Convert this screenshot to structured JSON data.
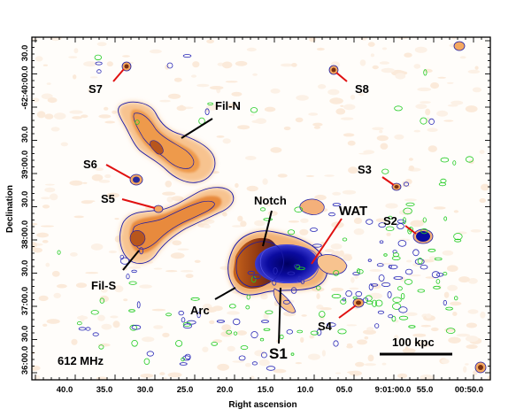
{
  "axes": {
    "x_title": "Right ascension",
    "y_title": "Declination",
    "x_ticks": [
      "40.0",
      "35.0",
      "30.0",
      "25.0",
      "20.0",
      "15.0",
      "10.0",
      "05.0",
      "9:01:00.0",
      "55.0",
      "00:50.0"
    ],
    "y_ticks": [
      "36:00.0",
      "30.0",
      "37:00.0",
      "30.0",
      "38:00.0",
      "30.0",
      "39:00.0",
      "30.0",
      "-62:40:00.0",
      "30.0"
    ]
  },
  "frequency_label": "612 MHz",
  "scale_bar_label": "100 kpc",
  "annotations": {
    "fil_n": "Fil-N",
    "fil_s": "Fil-S",
    "notch": "Notch",
    "wat": "WAT",
    "arc": "Arc",
    "s1": "S1",
    "s2": "S2",
    "s3": "S3",
    "s4": "S4",
    "s5": "S5",
    "s6": "S6",
    "s7": "S7",
    "s8": "S8"
  },
  "colors": {
    "background": "#fffdfa",
    "diffuse_emission": "#f4a860",
    "bright_emission": "#a03e12",
    "contour": "#1a1aa8",
    "negative_contour": "#22cc22",
    "source_marker_line": "#e01010",
    "compact_core": "#0a0a9a"
  }
}
